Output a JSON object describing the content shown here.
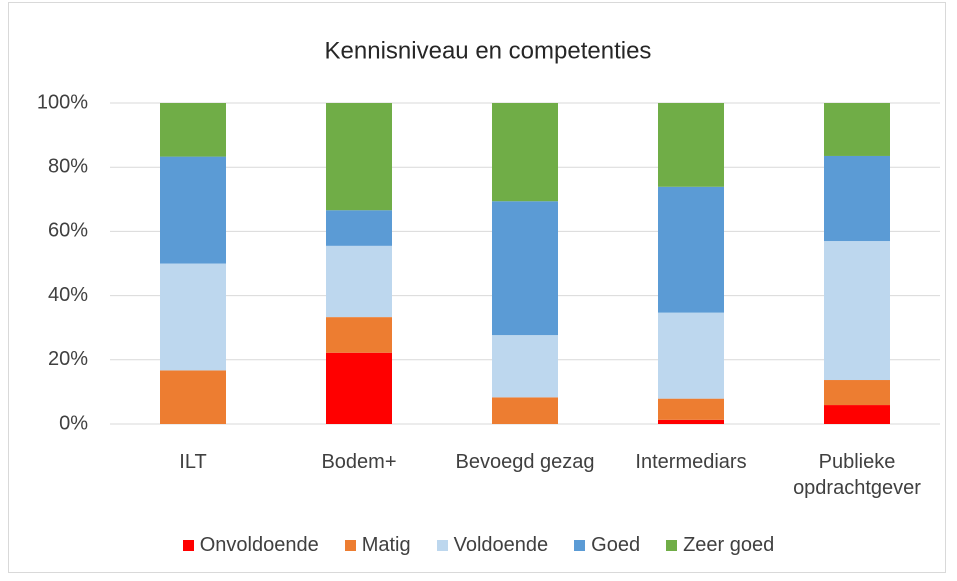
{
  "chart_data": {
    "type": "stacked_bar",
    "title": "Kennisniveau en competenties",
    "categories": [
      "ILT",
      "Bodem+",
      "Bevoegd gezag",
      "Intermediars",
      "Publieke opdrachtgever"
    ],
    "series": [
      {
        "name": "Onvoldoende",
        "color": "#ff0000",
        "values": [
          0,
          22.2,
          0,
          1.3,
          5.9
        ]
      },
      {
        "name": "Matig",
        "color": "#ed7d31",
        "values": [
          16.7,
          11.1,
          8.3,
          6.6,
          7.8
        ]
      },
      {
        "name": "Voldoende",
        "color": "#bdd7ee",
        "values": [
          33.3,
          22.2,
          19.4,
          26.8,
          43.3
        ]
      },
      {
        "name": "Goed",
        "color": "#5b9bd5",
        "values": [
          33.3,
          11.1,
          41.7,
          39.2,
          26.5
        ]
      },
      {
        "name": "Zeer goed",
        "color": "#70ad47",
        "values": [
          16.7,
          33.4,
          30.6,
          26.1,
          16.5
        ]
      }
    ],
    "ylim": [
      0,
      100
    ],
    "yticks": [
      {
        "value": 0,
        "label": "0%"
      },
      {
        "value": 20,
        "label": "20%"
      },
      {
        "value": 40,
        "label": "40%"
      },
      {
        "value": 60,
        "label": "60%"
      },
      {
        "value": 80,
        "label": "80%"
      },
      {
        "value": 100,
        "label": "100%"
      }
    ],
    "grid": true,
    "legend": "bottom"
  }
}
